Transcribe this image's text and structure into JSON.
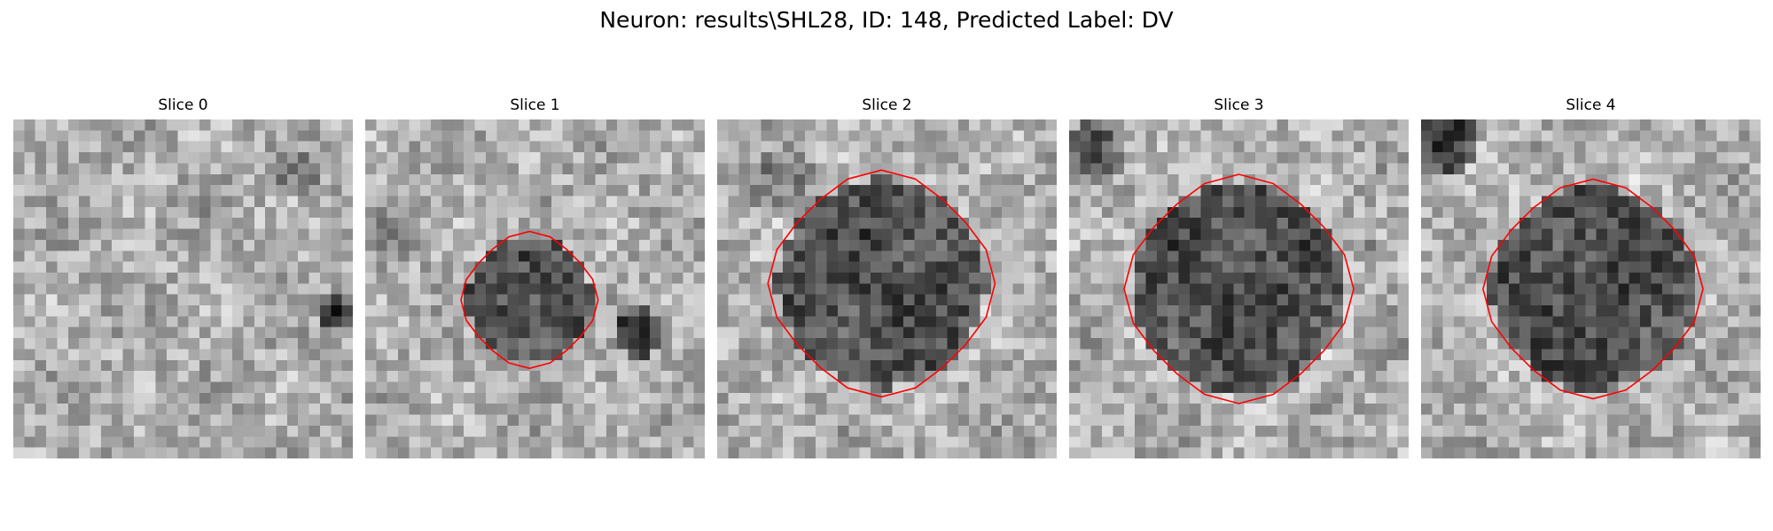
{
  "figure": {
    "title": "Neuron: results\\SHL28, ID: 148, Predicted Label: DV"
  },
  "panels": [
    {
      "title": "Slice 0",
      "has_contour": false
    },
    {
      "title": "Slice 1",
      "has_contour": true
    },
    {
      "title": "Slice 2",
      "has_contour": true
    },
    {
      "title": "Slice 3",
      "has_contour": true
    },
    {
      "title": "Slice 4",
      "has_contour": true
    }
  ],
  "colors": {
    "contour": "#ff0000",
    "colormap": "gray"
  }
}
